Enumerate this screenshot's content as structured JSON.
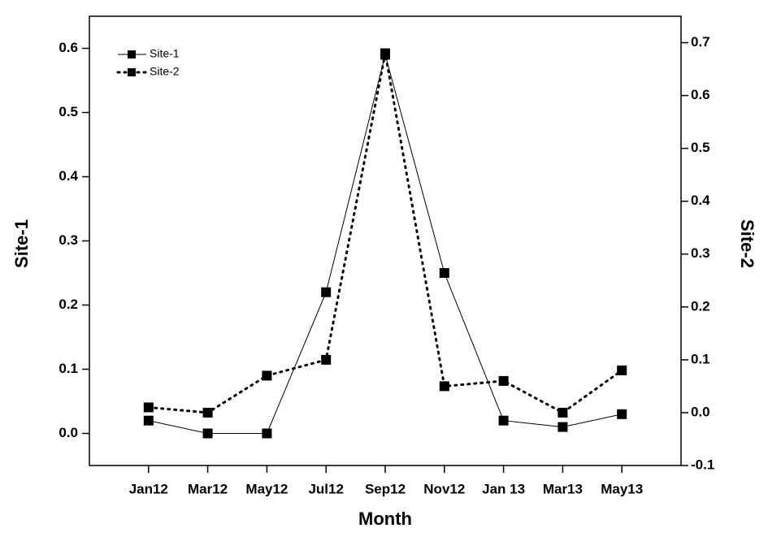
{
  "chart_data": {
    "type": "line",
    "x_label": "Month",
    "y_label": "Site-1",
    "y2_label": "Site-2",
    "categories": [
      "Jan12",
      "Mar12",
      "May12",
      "Jul12",
      "Sep12",
      "Nov12",
      "Jan 13",
      "Mar13",
      "May13"
    ],
    "series": [
      {
        "name": "Site-1",
        "color": "#000000",
        "line_style": "solid",
        "values": [
          0.02,
          0.0,
          0.0,
          0.22,
          0.59,
          0.25,
          0.02,
          0.01,
          0.03
        ]
      },
      {
        "name": "Site-2",
        "color": "#000000",
        "line_style": "dotted",
        "axis": "y2",
        "values": [
          0.01,
          0.0,
          0.07,
          0.1,
          0.68,
          0.05,
          0.06,
          0.0,
          0.08
        ]
      }
    ],
    "ylim": [
      -0.05,
      0.65
    ],
    "yticks": [
      {
        "value": 0,
        "label": "0.0"
      },
      0.1,
      0.2,
      0.3,
      0.4,
      0.5,
      0.6
    ],
    "y2lim": [
      -0.1,
      0.75
    ],
    "y2ticks": [
      -0.1,
      {
        "value": 0,
        "label": "0.0"
      },
      0.1,
      0.2,
      0.3,
      0.4,
      0.5,
      0.6,
      0.7
    ],
    "grid": false,
    "legend": "upper left"
  }
}
